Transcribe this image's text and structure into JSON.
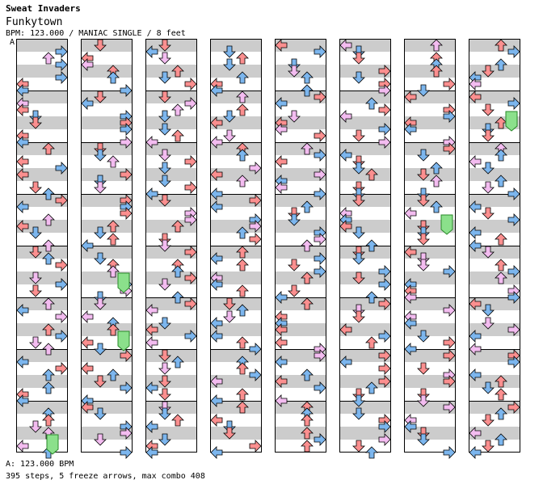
{
  "header": {
    "group_title": "Sweat Invaders",
    "song_title": "Funkytown",
    "meta": "BPM: 123.000 / MANIAC SINGLE / 8 feet",
    "mark": "A"
  },
  "footer": {
    "bpm_line": "A: 123.000 BPM",
    "stats_line": "395 steps, 5 freeze arrows, max combo 408"
  },
  "colors": {
    "quarter": "#fb8f8f",
    "eighth": "#7cb6ee",
    "sixteenth": "#f3bcf0",
    "freeze": "#8be08b",
    "stripe": "#cccccc",
    "frame": "#000000"
  },
  "chart_data": {
    "type": "table",
    "columns": 8,
    "measures_per_column": 8,
    "lane_order": [
      "left",
      "down",
      "up",
      "right"
    ],
    "arrow_count_shown": 395,
    "freeze_count": 5
  }
}
